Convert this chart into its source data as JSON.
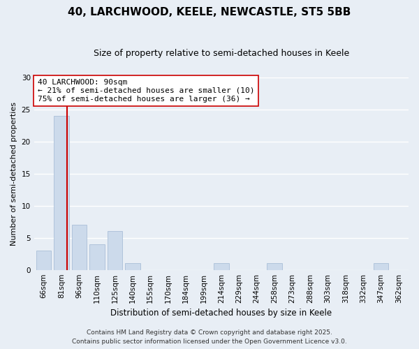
{
  "title": "40, LARCHWOOD, KEELE, NEWCASTLE, ST5 5BB",
  "subtitle": "Size of property relative to semi-detached houses in Keele",
  "xlabel": "Distribution of semi-detached houses by size in Keele",
  "ylabel": "Number of semi-detached properties",
  "bin_labels": [
    "66sqm",
    "81sqm",
    "96sqm",
    "110sqm",
    "125sqm",
    "140sqm",
    "155sqm",
    "170sqm",
    "184sqm",
    "199sqm",
    "214sqm",
    "229sqm",
    "244sqm",
    "258sqm",
    "273sqm",
    "288sqm",
    "303sqm",
    "318sqm",
    "332sqm",
    "347sqm",
    "362sqm"
  ],
  "bar_values": [
    3,
    24,
    7,
    4,
    6,
    1,
    0,
    0,
    0,
    0,
    1,
    0,
    0,
    1,
    0,
    0,
    0,
    0,
    0,
    1,
    0
  ],
  "bar_color": "#ccdaeb",
  "bar_edge_color": "#aabfd8",
  "vline_x_bar_index": 1,
  "vline_color": "#cc0000",
  "ylim": [
    0,
    30
  ],
  "yticks": [
    0,
    5,
    10,
    15,
    20,
    25,
    30
  ],
  "annotation_title": "40 LARCHWOOD: 90sqm",
  "annotation_line1": "← 21% of semi-detached houses are smaller (10)",
  "annotation_line2": "75% of semi-detached houses are larger (36) →",
  "annotation_box_color": "#ffffff",
  "annotation_box_edge": "#cc0000",
  "footnote1": "Contains HM Land Registry data © Crown copyright and database right 2025.",
  "footnote2": "Contains public sector information licensed under the Open Government Licence v3.0.",
  "background_color": "#e8eef5",
  "plot_bg_color": "#e8eef5",
  "grid_color": "#ffffff",
  "title_fontsize": 11,
  "subtitle_fontsize": 9,
  "ylabel_fontsize": 8,
  "xlabel_fontsize": 8.5,
  "tick_fontsize": 7.5,
  "ann_fontsize": 8,
  "footnote_fontsize": 6.5
}
